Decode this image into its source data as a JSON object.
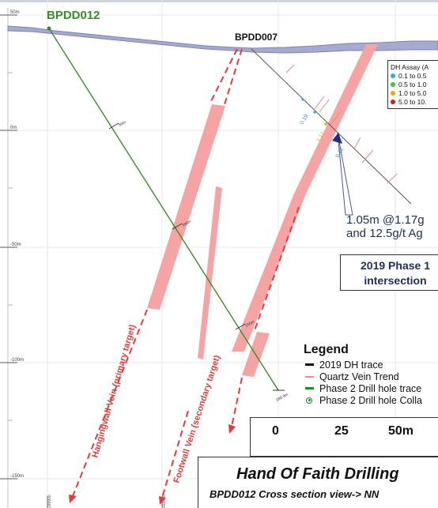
{
  "drill_holes": {
    "phase2_hole": {
      "name": "BPDD012",
      "color": "#3b8a2a"
    },
    "phase1_hole": {
      "name": "BPDD007",
      "color": "#111111"
    },
    "phase2_depth_labels": [
      "50m",
      "100m",
      "150m",
      "180.9m"
    ]
  },
  "elevation_axis": {
    "labels": [
      "50m",
      "0m",
      "-50m",
      "-100m",
      "-150m"
    ]
  },
  "easting_ticks": [
    "299900",
    "299950"
  ],
  "assay_legend": {
    "title": "DH Assay (A",
    "items": [
      {
        "label": "0.1 to 0.5",
        "color": "#3aa5e0"
      },
      {
        "label": "0.5 to 1.0",
        "color": "#44c23a"
      },
      {
        "label": "1.0 to 5.0",
        "color": "#f2a30f"
      },
      {
        "label": "5.0 to 10.",
        "color": "#d21e1e"
      }
    ]
  },
  "assay_values": [
    "0.19",
    "1.17",
    "0.22"
  ],
  "intersection": {
    "line1": "1.05m @1.17g",
    "line2": "and 12.5g/t Ag"
  },
  "phase_box": {
    "line1": "2019 Phase 1",
    "line2": "intersection"
  },
  "vein_labels": {
    "hangingwall": "Hangingwall Vein (primary target)",
    "footwall": "Footwall Vein (secondary target)"
  },
  "legend": {
    "title": "Legend",
    "items": [
      {
        "label": "2019 DH trace",
        "symbol": "black-line"
      },
      {
        "label": "Quartz Vein Trend",
        "symbol": "red-line"
      },
      {
        "label": "Phase 2 Drill hole trace",
        "symbol": "green-line"
      },
      {
        "label": "Phase 2 Drill hole Colla",
        "symbol": "collar-circle"
      }
    ]
  },
  "scale": {
    "labels": [
      "0",
      "25",
      "50m"
    ]
  },
  "title": {
    "main": "Hand Of Faith Drilling",
    "sub": "BPDD012 Cross section view-> NN"
  },
  "colors": {
    "vein_fill": "#f6a3a3",
    "vein_trend": "#e33b3b",
    "topography": "#9aa0c8",
    "annotation_blue": "#1e2d5a",
    "assay_text_blue": "#3a9ad9"
  }
}
